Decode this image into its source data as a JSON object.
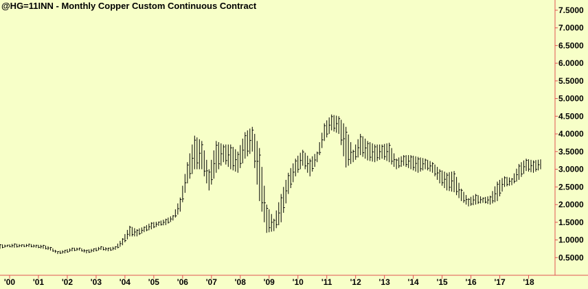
{
  "chart_data": {
    "type": "bar",
    "style": "ohlc",
    "title": "@HG=11INN - Monthly  Copper Custom Continuous Contract",
    "xlabel": "",
    "ylabel": "",
    "x_tick_labels": [
      "'00",
      "'01",
      "'02",
      "'03",
      "'04",
      "'05",
      "'06",
      "'07",
      "'08",
      "'09",
      "'10",
      "'11",
      "'12",
      "'13",
      "'14",
      "'15",
      "'16",
      "'17",
      "'18"
    ],
    "y_tick_labels": [
      "0.5000",
      "1.0000",
      "1.5000",
      "2.0000",
      "2.5000",
      "3.0000",
      "3.5000",
      "4.0000",
      "4.5000",
      "5.0000",
      "5.5000",
      "6.0000",
      "6.5000",
      "7.0000",
      "7.5000"
    ],
    "ylim": [
      0.0,
      7.75
    ],
    "xlim": [
      "1999-09",
      "2018-12"
    ],
    "y_axis_position": "right",
    "grid": false,
    "colors": {
      "background": "#f7ffc8",
      "bars": "#000000",
      "axis": "#e05050"
    },
    "series": [
      {
        "x": [
          "1999-09",
          "1999-12",
          "2000-03",
          "2000-06",
          "2000-09",
          "2000-12",
          "2001-03",
          "2001-06",
          "2001-09",
          "2001-12",
          "2002-03",
          "2002-06",
          "2002-09",
          "2002-12",
          "2003-03",
          "2003-06",
          "2003-09",
          "2003-12",
          "2004-03",
          "2004-06",
          "2004-09",
          "2004-12",
          "2005-03",
          "2005-06",
          "2005-09",
          "2005-12",
          "2006-03",
          "2006-06",
          "2006-09",
          "2006-12",
          "2007-03",
          "2007-06",
          "2007-09",
          "2007-12",
          "2008-03",
          "2008-06",
          "2008-09",
          "2008-12",
          "2009-03",
          "2009-06",
          "2009-09",
          "2009-12",
          "2010-03",
          "2010-06",
          "2010-09",
          "2010-12",
          "2011-03",
          "2011-06",
          "2011-09",
          "2011-12",
          "2012-03",
          "2012-06",
          "2012-09",
          "2012-12",
          "2013-03",
          "2013-06",
          "2013-09",
          "2013-12",
          "2014-03",
          "2014-06",
          "2014-09",
          "2014-12",
          "2015-03",
          "2015-06",
          "2015-09",
          "2015-12",
          "2016-03",
          "2016-06",
          "2016-09",
          "2016-12",
          "2017-03",
          "2017-06",
          "2017-09",
          "2017-12",
          "2018-03",
          "2018-06"
        ],
        "high": [
          0.88,
          0.86,
          0.9,
          0.87,
          0.89,
          0.86,
          0.86,
          0.8,
          0.68,
          0.72,
          0.78,
          0.78,
          0.72,
          0.76,
          0.82,
          0.78,
          0.82,
          1.05,
          1.4,
          1.3,
          1.38,
          1.5,
          1.52,
          1.6,
          1.7,
          2.2,
          3.2,
          3.95,
          3.8,
          3.0,
          3.8,
          3.7,
          3.7,
          3.5,
          4.05,
          4.2,
          3.6,
          2.0,
          1.6,
          2.3,
          2.9,
          3.3,
          3.55,
          3.3,
          3.5,
          4.3,
          4.55,
          4.5,
          4.2,
          3.55,
          4.0,
          3.8,
          3.7,
          3.7,
          3.75,
          3.3,
          3.4,
          3.4,
          3.35,
          3.3,
          3.2,
          3.0,
          2.9,
          2.95,
          2.45,
          2.18,
          2.3,
          2.2,
          2.25,
          2.65,
          2.8,
          2.75,
          3.15,
          3.3,
          3.25,
          3.28
        ],
        "low": [
          0.75,
          0.8,
          0.78,
          0.8,
          0.8,
          0.78,
          0.75,
          0.7,
          0.6,
          0.62,
          0.68,
          0.7,
          0.62,
          0.66,
          0.72,
          0.68,
          0.72,
          0.85,
          1.1,
          1.1,
          1.22,
          1.3,
          1.4,
          1.42,
          1.55,
          1.8,
          2.6,
          3.0,
          3.0,
          2.4,
          2.9,
          3.2,
          3.0,
          2.9,
          3.3,
          3.5,
          2.1,
          1.2,
          1.25,
          1.5,
          2.3,
          2.8,
          3.1,
          2.8,
          3.2,
          3.8,
          4.1,
          4.0,
          3.05,
          3.2,
          3.4,
          3.25,
          3.2,
          3.3,
          3.2,
          3.0,
          3.1,
          3.0,
          2.9,
          3.0,
          2.9,
          2.6,
          2.4,
          2.35,
          2.1,
          1.95,
          2.0,
          2.05,
          2.0,
          2.1,
          2.5,
          2.55,
          2.7,
          2.95,
          2.9,
          3.0
        ]
      }
    ]
  }
}
